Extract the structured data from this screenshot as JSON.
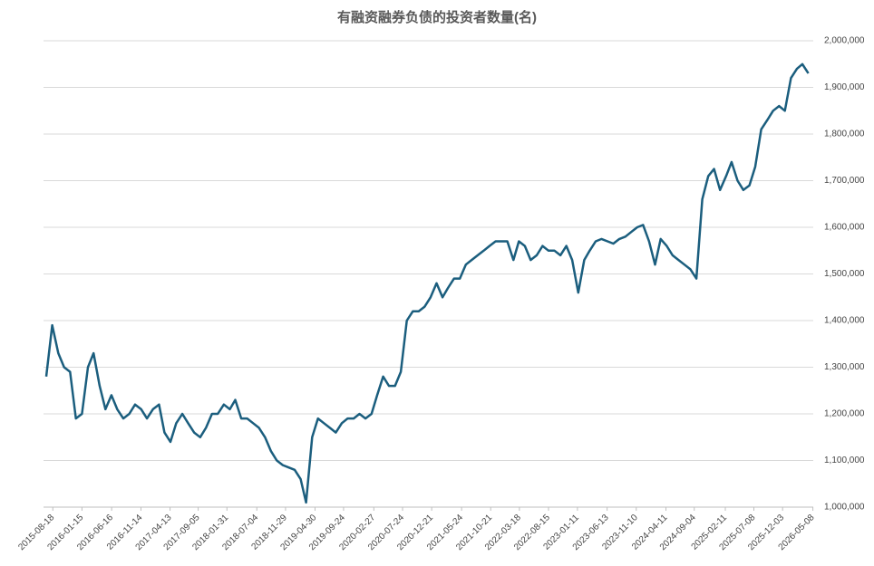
{
  "chart_data": {
    "type": "line",
    "title": "有融资融券负债的投资者数量(名)",
    "x": [
      "2015-07-15",
      "2015-08-15",
      "2015-09-15",
      "2015-10-15",
      "2015-11-15",
      "2015-12-15",
      "2016-01-15",
      "2016-02-15",
      "2016-03-15",
      "2016-04-15",
      "2016-05-15",
      "2016-06-15",
      "2016-07-15",
      "2016-08-15",
      "2016-09-15",
      "2016-10-15",
      "2016-11-15",
      "2016-12-15",
      "2017-01-15",
      "2017-02-15",
      "2017-03-15",
      "2017-04-15",
      "2017-05-15",
      "2017-06-15",
      "2017-07-15",
      "2017-08-15",
      "2017-09-15",
      "2017-10-15",
      "2017-11-15",
      "2017-12-15",
      "2018-01-15",
      "2018-02-15",
      "2018-03-15",
      "2018-04-15",
      "2018-05-15",
      "2018-06-15",
      "2018-07-15",
      "2018-08-15",
      "2018-09-15",
      "2018-10-15",
      "2018-11-15",
      "2018-12-15",
      "2019-01-15",
      "2019-02-15",
      "2019-03-15",
      "2019-04-15",
      "2019-05-15",
      "2019-06-15",
      "2019-07-15",
      "2019-08-15",
      "2019-09-15",
      "2019-10-15",
      "2019-11-15",
      "2019-12-15",
      "2020-01-15",
      "2020-02-15",
      "2020-03-15",
      "2020-04-15",
      "2020-05-15",
      "2020-06-15",
      "2020-07-15",
      "2020-08-15",
      "2020-09-15",
      "2020-10-15",
      "2020-11-15",
      "2020-12-15",
      "2021-01-15",
      "2021-02-15",
      "2021-03-15",
      "2021-04-15",
      "2021-05-15",
      "2021-06-15",
      "2021-07-15",
      "2021-08-15",
      "2021-09-15",
      "2021-10-15",
      "2021-11-15",
      "2021-12-15",
      "2022-01-15",
      "2022-02-15",
      "2022-03-15",
      "2022-04-15",
      "2022-05-15",
      "2022-06-15",
      "2022-07-15",
      "2022-08-15",
      "2022-09-15",
      "2022-10-15",
      "2022-11-15",
      "2022-12-15",
      "2023-01-15",
      "2023-02-15",
      "2023-03-15",
      "2023-04-15",
      "2023-05-15",
      "2023-06-15",
      "2023-07-15",
      "2023-08-15",
      "2023-09-15",
      "2023-10-15",
      "2023-11-15",
      "2023-12-15",
      "2024-01-15",
      "2024-02-15",
      "2024-03-15",
      "2024-04-15",
      "2024-05-15",
      "2024-06-15",
      "2024-07-15",
      "2024-08-15",
      "2024-09-15",
      "2024-10-15",
      "2024-11-15",
      "2024-12-15",
      "2025-01-15",
      "2025-02-15",
      "2025-03-15",
      "2025-04-15",
      "2025-05-15",
      "2025-06-15",
      "2025-07-15",
      "2025-08-15",
      "2025-09-15",
      "2025-10-15",
      "2025-11-15",
      "2025-12-15",
      "2026-01-15",
      "2026-02-15",
      "2026-03-15",
      "2026-04-15"
    ],
    "series": [
      {
        "color": "#1b5e7e",
        "values": [
          1280000,
          1390000,
          1330000,
          1300000,
          1290000,
          1190000,
          1200000,
          1300000,
          1330000,
          1260000,
          1210000,
          1240000,
          1210000,
          1190000,
          1200000,
          1220000,
          1210000,
          1190000,
          1210000,
          1220000,
          1160000,
          1140000,
          1180000,
          1200000,
          1180000,
          1160000,
          1150000,
          1170000,
          1200000,
          1200000,
          1220000,
          1210000,
          1230000,
          1190000,
          1190000,
          1180000,
          1170000,
          1150000,
          1120000,
          1100000,
          1090000,
          1085000,
          1080000,
          1060000,
          1010000,
          1150000,
          1190000,
          1180000,
          1170000,
          1160000,
          1180000,
          1190000,
          1190000,
          1200000,
          1190000,
          1200000,
          1240000,
          1280000,
          1260000,
          1260000,
          1290000,
          1400000,
          1420000,
          1420000,
          1430000,
          1450000,
          1480000,
          1450000,
          1470000,
          1490000,
          1490000,
          1520000,
          1530000,
          1540000,
          1550000,
          1560000,
          1570000,
          1570000,
          1570000,
          1530000,
          1570000,
          1560000,
          1530000,
          1540000,
          1560000,
          1550000,
          1550000,
          1540000,
          1560000,
          1530000,
          1460000,
          1530000,
          1550000,
          1570000,
          1575000,
          1570000,
          1565000,
          1575000,
          1580000,
          1590000,
          1600000,
          1605000,
          1570000,
          1520000,
          1575000,
          1560000,
          1540000,
          1530000,
          1520000,
          1510000,
          1490000,
          1660000,
          1710000,
          1725000,
          1680000,
          1710000,
          1740000,
          1700000,
          1680000,
          1690000,
          1730000,
          1810000,
          1830000,
          1850000,
          1860000,
          1850000,
          1920000,
          1940000,
          1950000,
          1930000
        ]
      }
    ],
    "xlim": [
      "2015-07-01",
      "2026-05-10"
    ],
    "xticks": [
      "2015-08-18",
      "2016-01-15",
      "2016-06-16",
      "2016-11-14",
      "2017-04-13",
      "2017-09-05",
      "2018-01-31",
      "2018-07-04",
      "2018-11-29",
      "2019-04-30",
      "2019-09-24",
      "2020-02-27",
      "2020-07-24",
      "2020-12-21",
      "2021-05-24",
      "2021-10-21",
      "2022-03-18",
      "2022-08-15",
      "2023-01-11",
      "2023-06-13",
      "2023-11-10",
      "2024-04-11",
      "2024-09-04",
      "2025-02-11",
      "2025-07-08",
      "2025-12-03",
      "2026-05-08"
    ],
    "ylim": [
      1000000,
      2000000
    ],
    "yticks": [
      {
        "value": 1000000,
        "label": "1,000,000"
      },
      {
        "value": 1100000,
        "label": "1,100,000"
      },
      {
        "value": 1200000,
        "label": "1,200,000"
      },
      {
        "value": 1300000,
        "label": "1,300,000"
      },
      {
        "value": 1400000,
        "label": "1,400,000"
      },
      {
        "value": 1500000,
        "label": "1,500,000"
      },
      {
        "value": 1600000,
        "label": "1,600,000"
      },
      {
        "value": 1700000,
        "label": "1,700,000"
      },
      {
        "value": 1800000,
        "label": "1,800,000"
      },
      {
        "value": 1900000,
        "label": "1,900,000"
      },
      {
        "value": 2000000,
        "label": "2,000,000"
      }
    ],
    "grid": true
  }
}
